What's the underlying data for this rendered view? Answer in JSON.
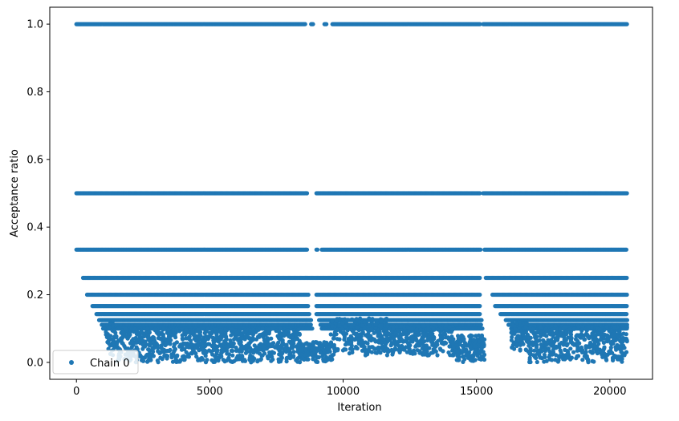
{
  "chart_data": {
    "type": "scatter",
    "title": "",
    "xlabel": "Iteration",
    "ylabel": "Acceptance ratio",
    "xlim": [
      -1000,
      21600
    ],
    "ylim": [
      -0.05,
      1.05
    ],
    "x_ticks": [
      0,
      5000,
      10000,
      15000,
      20000
    ],
    "x_tick_labels": [
      "0",
      "5000",
      "10000",
      "15000",
      "20000"
    ],
    "y_ticks": [
      0.0,
      0.2,
      0.4,
      0.6,
      0.8,
      1.0
    ],
    "y_tick_labels": [
      "0.0",
      "0.2",
      "0.4",
      "0.6",
      "0.8",
      "1.0"
    ],
    "grid": false,
    "legend_position": "lower-left",
    "color": "#1f77b4",
    "series": [
      {
        "name": "Chain 0",
        "marker": "circle",
        "levels": [
          1.0,
          0.5,
          0.3333,
          0.25,
          0.2,
          0.1667,
          0.1429,
          0.125,
          0.1111,
          0.1
        ],
        "level_segments": {
          "1.0": [
            [
              0,
              8600
            ],
            [
              8800,
              8900
            ],
            [
              9300,
              9400
            ],
            [
              9600,
              15150
            ],
            [
              15250,
              20650
            ]
          ],
          "0.5": [
            [
              0,
              8650
            ],
            [
              9000,
              15150
            ],
            [
              15250,
              20650
            ]
          ],
          "0.3333": [
            [
              0,
              8650
            ],
            [
              9000,
              9050
            ],
            [
              9200,
              15150
            ],
            [
              15300,
              20650
            ]
          ],
          "0.25": [
            [
              250,
              15150
            ],
            [
              15350,
              20650
            ]
          ],
          "0.2": [
            [
              400,
              8700
            ],
            [
              9000,
              15150
            ],
            [
              15600,
              20650
            ]
          ],
          "0.1667": [
            [
              600,
              8700
            ],
            [
              9000,
              15150
            ],
            [
              15700,
              20650
            ]
          ],
          "0.1429": [
            [
              750,
              8750
            ],
            [
              9000,
              15150
            ],
            [
              15900,
              20650
            ]
          ],
          "0.125": [
            [
              850,
              8800
            ],
            [
              9100,
              15200
            ],
            [
              16100,
              20650
            ]
          ],
          "0.1111": [
            [
              950,
              8800
            ],
            [
              9150,
              15200
            ],
            [
              16200,
              20650
            ]
          ],
          "0.1": [
            [
              1000,
              8850
            ],
            [
              9200,
              15250
            ],
            [
              16300,
              20650
            ]
          ]
        },
        "cluster_regions": [
          {
            "x": [
              1100,
              1500
            ],
            "y": [
              0.02,
              0.12
            ]
          },
          {
            "x": [
              1500,
              8400
            ],
            "y": [
              0.0,
              0.1
            ]
          },
          {
            "x": [
              8300,
              9600
            ],
            "y": [
              0.0,
              0.06
            ]
          },
          {
            "x": [
              9500,
              11700
            ],
            "y": [
              0.02,
              0.13
            ]
          },
          {
            "x": [
              11700,
              14200
            ],
            "y": [
              0.02,
              0.11
            ]
          },
          {
            "x": [
              14200,
              15300
            ],
            "y": [
              0.0,
              0.08
            ]
          },
          {
            "x": [
              16300,
              16900
            ],
            "y": [
              0.03,
              0.12
            ]
          },
          {
            "x": [
              16900,
              20650
            ],
            "y": [
              0.0,
              0.11
            ]
          }
        ]
      }
    ]
  }
}
